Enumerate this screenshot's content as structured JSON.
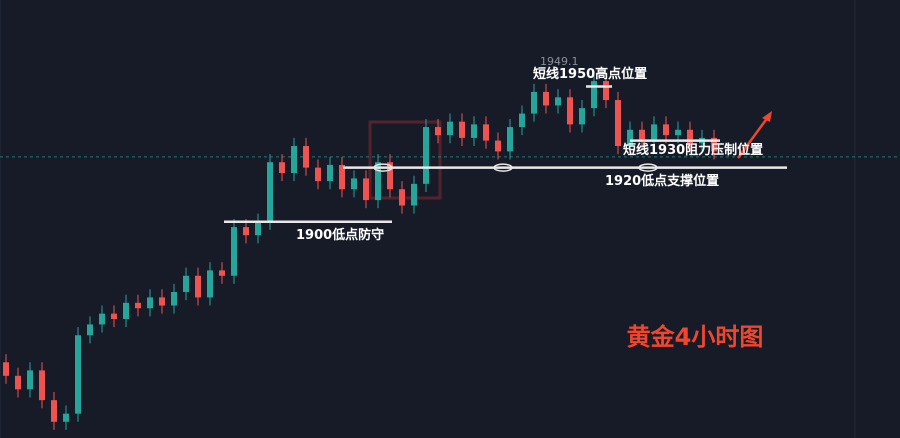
{
  "chart_data": {
    "type": "candlestick",
    "title": "黄金4小时图",
    "price_tag": "1949.1",
    "ylim": [
      1820,
      1982
    ],
    "current_price": 1924,
    "up_color": "#26a69a",
    "down_color": "#ef5350",
    "levels": [
      {
        "label": "1900低点防守",
        "value": 1900
      },
      {
        "label": "1920低点支撑位置",
        "value": 1920
      },
      {
        "label": "短线1950高点位置",
        "value": 1950
      },
      {
        "label": "短线1930阻力压制位置",
        "value": 1930
      }
    ],
    "open": [
      1848,
      1843,
      1838,
      1845,
      1834,
      1826,
      1829,
      1858,
      1862,
      1866,
      1864,
      1870,
      1868,
      1872,
      1869,
      1874,
      1880,
      1872,
      1882,
      1880,
      1898,
      1895,
      1900,
      1922,
      1918,
      1928,
      1920,
      1915,
      1921,
      1912,
      1916,
      1908,
      1922,
      1912,
      1906,
      1914,
      1935,
      1932,
      1937,
      1931,
      1936,
      1930,
      1926,
      1935,
      1940,
      1948,
      1943,
      1946,
      1936,
      1942,
      1952,
      1945,
      1928,
      1934,
      1930,
      1936,
      1932,
      1934,
      1929,
      1931
    ],
    "high": [
      1851,
      1846,
      1848,
      1848,
      1837,
      1832,
      1861,
      1865,
      1869,
      1869,
      1873,
      1873,
      1875,
      1875,
      1877,
      1883,
      1883,
      1885,
      1885,
      1901,
      1901,
      1903,
      1925,
      1925,
      1931,
      1931,
      1923,
      1924,
      1924,
      1919,
      1919,
      1925,
      1925,
      1915,
      1917,
      1938,
      1938,
      1940,
      1940,
      1939,
      1939,
      1933,
      1938,
      1943,
      1951,
      1951,
      1949,
      1949,
      1945,
      1955,
      1955,
      1948,
      1937,
      1937,
      1939,
      1939,
      1937,
      1937,
      1934,
      1934
    ],
    "low": [
      1840,
      1835,
      1835,
      1831,
      1823,
      1823,
      1826,
      1855,
      1859,
      1861,
      1861,
      1865,
      1865,
      1866,
      1866,
      1871,
      1869,
      1869,
      1877,
      1877,
      1892,
      1892,
      1897,
      1915,
      1915,
      1917,
      1912,
      1912,
      1909,
      1909,
      1905,
      1905,
      1909,
      1903,
      1903,
      1911,
      1929,
      1929,
      1928,
      1928,
      1927,
      1923,
      1923,
      1932,
      1937,
      1940,
      1940,
      1933,
      1933,
      1939,
      1942,
      1925,
      1925,
      1927,
      1927,
      1929,
      1929,
      1926,
      1926,
      1923
    ],
    "close": [
      1843,
      1838,
      1845,
      1834,
      1826,
      1829,
      1858,
      1862,
      1866,
      1864,
      1870,
      1868,
      1872,
      1869,
      1874,
      1880,
      1872,
      1882,
      1880,
      1898,
      1895,
      1900,
      1922,
      1918,
      1928,
      1920,
      1915,
      1921,
      1912,
      1916,
      1908,
      1922,
      1912,
      1906,
      1914,
      1935,
      1932,
      1937,
      1931,
      1936,
      1930,
      1926,
      1935,
      1940,
      1948,
      1943,
      1946,
      1936,
      1942,
      1952,
      1945,
      1928,
      1934,
      1930,
      1936,
      1932,
      1934,
      1929,
      1931,
      1926
    ]
  }
}
